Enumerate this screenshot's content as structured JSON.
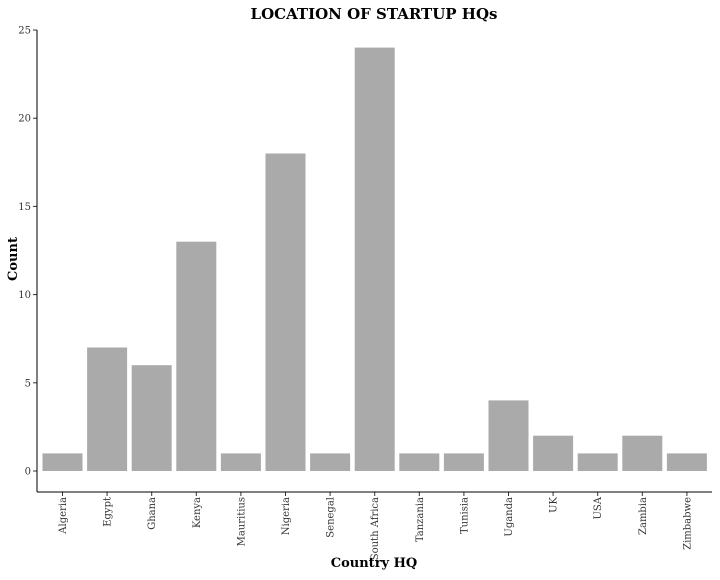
{
  "chart_data": {
    "type": "bar",
    "title": "LOCATION OF STARTUP HQs",
    "xlabel": "Country HQ",
    "ylabel": "Count",
    "categories": [
      "Algeria",
      "Egypt",
      "Ghana",
      "Kenya",
      "Mauritius",
      "Nigeria",
      "Senegal",
      "South Africa",
      "Tanzania",
      "Tunisia",
      "Uganda",
      "UK",
      "USA",
      "Zambia",
      "Zimbabwe"
    ],
    "values": [
      1,
      7,
      6,
      13,
      1,
      18,
      1,
      24,
      1,
      1,
      4,
      2,
      1,
      2,
      1
    ],
    "ylim": [
      0,
      25
    ],
    "yticks": [
      0,
      5,
      10,
      15,
      20,
      25
    ],
    "grid": false,
    "bar_color": "#aaaaaa"
  }
}
